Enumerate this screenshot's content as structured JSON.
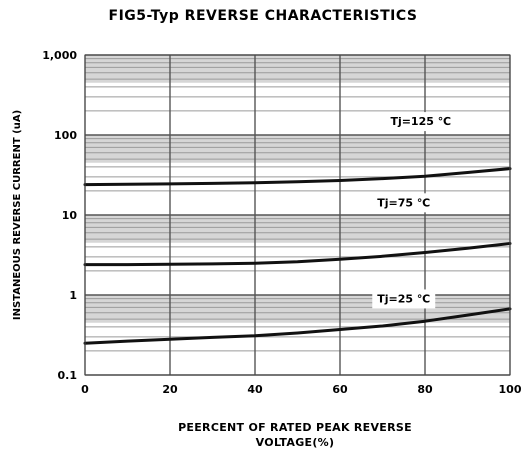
{
  "chart_data": {
    "type": "line",
    "title": "FIG5-Typ REVERSE CHARACTERISTICS",
    "xlabel_lines": [
      "PEERCENT OF RATED PEAK REVERSE",
      "VOLTAGE(%)"
    ],
    "ylabel": "INSTANEOUS REVERSE CURRENT (uA)",
    "x_scale": "linear",
    "y_scale": "log",
    "xlim": [
      0,
      100
    ],
    "ylim": [
      0.1,
      1000
    ],
    "x_ticks": [
      0,
      20,
      40,
      60,
      80,
      100
    ],
    "x_tick_labels": [
      "0",
      "20",
      "40",
      "60",
      "80",
      "100"
    ],
    "y_ticks": [
      0.1,
      1,
      10,
      100,
      1000
    ],
    "y_tick_labels": [
      "0.1",
      "1",
      "10",
      "100",
      "1,000"
    ],
    "grid": true,
    "series": [
      {
        "name": "Tj=125 ℃",
        "x": [
          0,
          10,
          20,
          30,
          40,
          50,
          60,
          70,
          80,
          90,
          100
        ],
        "y": [
          24,
          24.2,
          24.5,
          24.8,
          25.3,
          26,
          27,
          28.5,
          30.5,
          34,
          38
        ]
      },
      {
        "name": "Tj=75 ℃",
        "x": [
          0,
          10,
          20,
          30,
          40,
          50,
          60,
          70,
          80,
          90,
          100
        ],
        "y": [
          2.4,
          2.4,
          2.42,
          2.45,
          2.5,
          2.6,
          2.8,
          3.05,
          3.4,
          3.85,
          4.4
        ]
      },
      {
        "name": "Tj=25 ℃",
        "x": [
          0,
          10,
          20,
          30,
          40,
          50,
          60,
          70,
          80,
          90,
          100
        ],
        "y": [
          0.25,
          0.265,
          0.28,
          0.295,
          0.31,
          0.335,
          0.37,
          0.41,
          0.47,
          0.56,
          0.67
        ]
      }
    ]
  }
}
